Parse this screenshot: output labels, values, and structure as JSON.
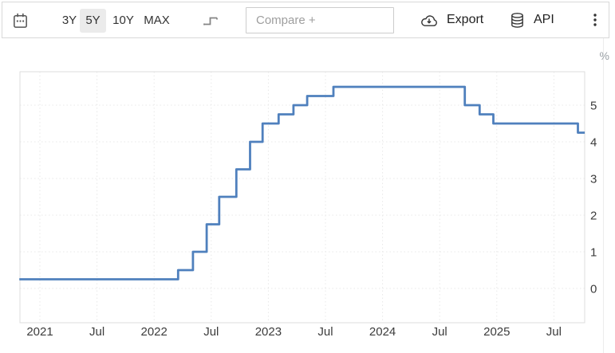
{
  "toolbar": {
    "calendar_icon": "calendar-icon",
    "range_buttons": [
      {
        "label": "3Y",
        "selected": false
      },
      {
        "label": "5Y",
        "selected": true
      },
      {
        "label": "10Y",
        "selected": false
      },
      {
        "label": "MAX",
        "selected": false
      }
    ],
    "step_chart_icon": "step-line-chart-icon",
    "compare_placeholder": "Compare +",
    "export_label": "Export",
    "export_icon": "cloud-download-icon",
    "api_label": "API",
    "api_icon": "database-icon",
    "menu_icon": "kebab-menu-icon"
  },
  "chart": {
    "unit_label": "%"
  },
  "chart_data": {
    "type": "line",
    "subtype": "step",
    "title": "",
    "xlabel": "",
    "ylabel": "%",
    "grid": true,
    "legend": "none",
    "x_domain_decimal_years": [
      2020.82,
      2025.77
    ],
    "y_axis_side": "right",
    "y_ticks": [
      0,
      1,
      2,
      3,
      4,
      5
    ],
    "x_ticks": [
      {
        "x": 2021.0,
        "label": "2021"
      },
      {
        "x": 2021.5,
        "label": "Jul"
      },
      {
        "x": 2022.0,
        "label": "2022"
      },
      {
        "x": 2022.5,
        "label": "Jul"
      },
      {
        "x": 2023.0,
        "label": "2023"
      },
      {
        "x": 2023.5,
        "label": "Jul"
      },
      {
        "x": 2024.0,
        "label": "2024"
      },
      {
        "x": 2024.5,
        "label": "Jul"
      },
      {
        "x": 2025.0,
        "label": "2025"
      },
      {
        "x": 2025.5,
        "label": "Jul"
      }
    ],
    "series": [
      {
        "color": "#4f80bd",
        "points": [
          {
            "date": "2020-11",
            "x": 2020.82,
            "value": 0.25
          },
          {
            "date": "2022-03",
            "x": 2022.21,
            "value": 0.5
          },
          {
            "date": "2022-05",
            "x": 2022.34,
            "value": 1.0
          },
          {
            "date": "2022-06",
            "x": 2022.46,
            "value": 1.75
          },
          {
            "date": "2022-07",
            "x": 2022.57,
            "value": 2.5
          },
          {
            "date": "2022-09",
            "x": 2022.72,
            "value": 3.25
          },
          {
            "date": "2022-11",
            "x": 2022.84,
            "value": 4.0
          },
          {
            "date": "2022-12",
            "x": 2022.95,
            "value": 4.5
          },
          {
            "date": "2023-02",
            "x": 2023.09,
            "value": 4.75
          },
          {
            "date": "2023-03",
            "x": 2023.22,
            "value": 5.0
          },
          {
            "date": "2023-05",
            "x": 2023.34,
            "value": 5.25
          },
          {
            "date": "2023-07",
            "x": 2023.57,
            "value": 5.5
          },
          {
            "date": "2024-09",
            "x": 2024.72,
            "value": 5.0
          },
          {
            "date": "2024-11",
            "x": 2024.85,
            "value": 4.75
          },
          {
            "date": "2024-12",
            "x": 2024.97,
            "value": 4.5
          },
          {
            "date": "2025-09",
            "x": 2025.71,
            "value": 4.25
          }
        ]
      }
    ]
  }
}
